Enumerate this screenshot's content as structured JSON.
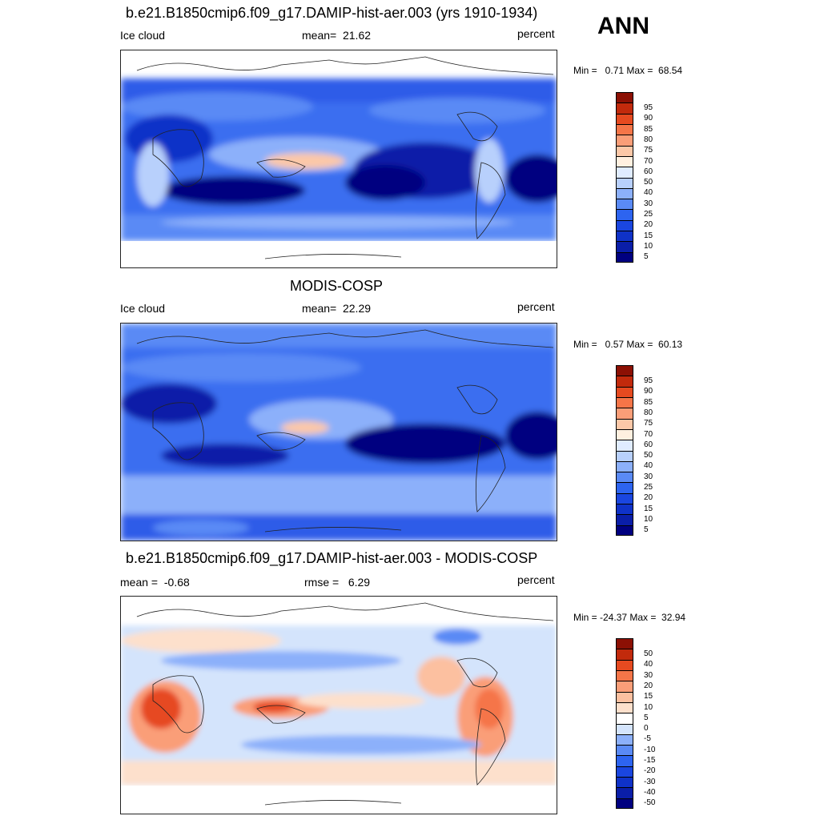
{
  "season": "ANN",
  "panels": [
    {
      "id": "test",
      "title": "b.e21.B1850cmip6.f09_g17.DAMIP-hist-aer.003 (yrs 1910-1934)",
      "left_label": "Ice cloud",
      "center_label": "mean=  21.62",
      "right_label": "percent",
      "minmax": "Min =   0.71 Max =  68.54"
    },
    {
      "id": "obs",
      "title": "MODIS-COSP",
      "left_label": "Ice cloud",
      "center_label": "mean=  22.29",
      "right_label": "percent",
      "minmax": "Min =   0.57 Max =  60.13"
    },
    {
      "id": "diff",
      "title": "b.e21.B1850cmip6.f09_g17.DAMIP-hist-aer.003 - MODIS-COSP",
      "left_label": "mean =  -0.68",
      "center_label": "rmse =   6.29",
      "right_label": "percent",
      "minmax": "Min = -24.37 Max =  32.94"
    }
  ],
  "chart_data": [
    {
      "type": "heatmap",
      "title": "b.e21.B1850cmip6.f09_g17.DAMIP-hist-aer.003 (yrs 1910-1934)",
      "variable": "Ice cloud",
      "units": "percent",
      "mean": 21.62,
      "min": 0.71,
      "max": 68.54,
      "colorbar_levels": [
        5,
        10,
        15,
        20,
        25,
        30,
        40,
        50,
        60,
        70,
        75,
        80,
        85,
        90,
        95
      ],
      "colorbar_colors": [
        "#000080",
        "#0a1ea8",
        "#0f32c8",
        "#1a46e0",
        "#2d64f0",
        "#5a8af5",
        "#8cb0fa",
        "#b8d0fc",
        "#e0ecff",
        "#fff0e0",
        "#fcc8a8",
        "#fa9e78",
        "#f57548",
        "#e64a20",
        "#c22a0c",
        "#8c1004"
      ]
    },
    {
      "type": "heatmap",
      "title": "MODIS-COSP",
      "variable": "Ice cloud",
      "units": "percent",
      "mean": 22.29,
      "min": 0.57,
      "max": 60.13,
      "colorbar_levels": [
        5,
        10,
        15,
        20,
        25,
        30,
        40,
        50,
        60,
        70,
        75,
        80,
        85,
        90,
        95
      ],
      "colorbar_colors": [
        "#000080",
        "#0a1ea8",
        "#0f32c8",
        "#1a46e0",
        "#2d64f0",
        "#5a8af5",
        "#8cb0fa",
        "#b8d0fc",
        "#e0ecff",
        "#fff0e0",
        "#fcc8a8",
        "#fa9e78",
        "#f57548",
        "#e64a20",
        "#c22a0c",
        "#8c1004"
      ]
    },
    {
      "type": "heatmap",
      "title": "b.e21.B1850cmip6.f09_g17.DAMIP-hist-aer.003 - MODIS-COSP",
      "units": "percent",
      "mean": -0.68,
      "rmse": 6.29,
      "min": -24.37,
      "max": 32.94,
      "colorbar_levels": [
        -50,
        -40,
        -30,
        -20,
        -15,
        -10,
        -5,
        0,
        5,
        10,
        15,
        20,
        30,
        40,
        50
      ],
      "colorbar_colors": [
        "#000080",
        "#0a1ea8",
        "#0f32c8",
        "#1a46e0",
        "#2d64f0",
        "#5a8af5",
        "#8cb0fa",
        "#d4e4fc",
        "#ffffff",
        "#fde0cc",
        "#fcc0a0",
        "#fa9e78",
        "#f57548",
        "#e64a20",
        "#c22a0c",
        "#8c1004"
      ]
    }
  ]
}
